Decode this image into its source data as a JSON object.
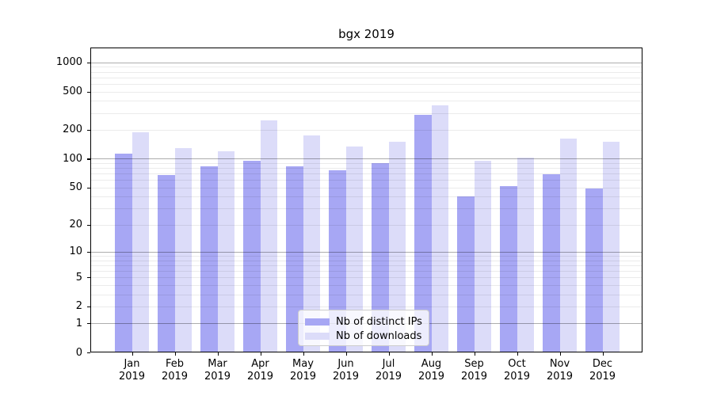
{
  "chart_data": {
    "type": "bar",
    "title": "bgx 2019",
    "categories": [
      {
        "month": "Jan",
        "year": "2019"
      },
      {
        "month": "Feb",
        "year": "2019"
      },
      {
        "month": "Mar",
        "year": "2019"
      },
      {
        "month": "Apr",
        "year": "2019"
      },
      {
        "month": "May",
        "year": "2019"
      },
      {
        "month": "Jun",
        "year": "2019"
      },
      {
        "month": "Jul",
        "year": "2019"
      },
      {
        "month": "Aug",
        "year": "2019"
      },
      {
        "month": "Sep",
        "year": "2019"
      },
      {
        "month": "Oct",
        "year": "2019"
      },
      {
        "month": "Nov",
        "year": "2019"
      },
      {
        "month": "Dec",
        "year": "2019"
      }
    ],
    "series": [
      {
        "name": "Nb of distinct IPs",
        "color": "#a7a7f4",
        "values": [
          113,
          68,
          84,
          96,
          84,
          75,
          90,
          285,
          40,
          52,
          69,
          49
        ]
      },
      {
        "name": "Nb of downloads",
        "color": "#dcdcf9",
        "values": [
          190,
          128,
          120,
          250,
          174,
          134,
          150,
          360,
          96,
          102,
          163,
          150
        ]
      }
    ],
    "xlabel": "",
    "ylabel": "",
    "yscale": "symlog (position proportional to ln(1+v))",
    "ylim": [
      0,
      1430
    ],
    "y_ticks": [
      {
        "value": 1000,
        "label": "1000"
      },
      {
        "value": 500,
        "label": "500"
      },
      {
        "value": 200,
        "label": "200"
      },
      {
        "value": 100,
        "label": "100"
      },
      {
        "value": 50,
        "label": "50"
      },
      {
        "value": 20,
        "label": "20"
      },
      {
        "value": 10,
        "label": "10"
      },
      {
        "value": 5,
        "label": "5"
      },
      {
        "value": 2,
        "label": "2"
      },
      {
        "value": 1,
        "label": "1"
      },
      {
        "value": 0,
        "label": "0"
      }
    ],
    "grid": {
      "major_gridlines_at": [
        1,
        10,
        100,
        1000
      ],
      "minor_gridlines": "2-9 per decade (2..9, 20..90, 200..900)",
      "drawn_above_bars": true
    },
    "legend": {
      "position": "lower center",
      "entries": [
        "Nb of distinct IPs",
        "Nb of downloads"
      ]
    }
  }
}
